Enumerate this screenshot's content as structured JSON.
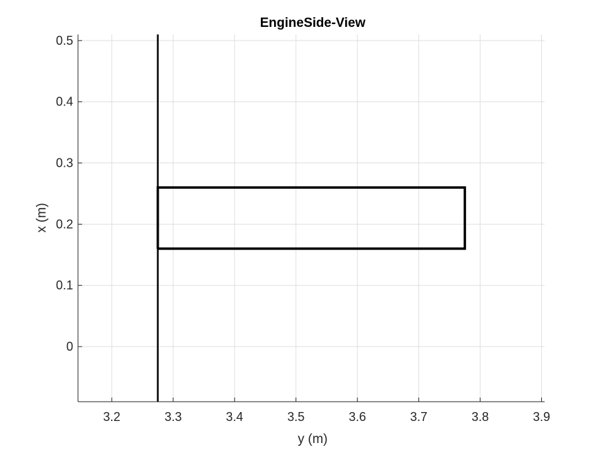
{
  "chart_data": {
    "type": "line",
    "title": "EngineSide-View",
    "xlabel": "y (m)",
    "ylabel": "x (m)",
    "xlim": [
      3.145,
      3.905
    ],
    "ylim": [
      -0.09,
      0.51
    ],
    "xticks": [
      3.2,
      3.3,
      3.4,
      3.5,
      3.6,
      3.7,
      3.8,
      3.9
    ],
    "yticks": [
      0,
      0.1,
      0.2,
      0.3,
      0.4,
      0.5
    ],
    "xtick_labels": [
      "3.2",
      "3.3",
      "3.4",
      "3.5",
      "3.6",
      "3.7",
      "3.8",
      "3.9"
    ],
    "ytick_labels": [
      "0",
      "0.1",
      "0.2",
      "0.3",
      "0.4",
      "0.5"
    ],
    "grid": true,
    "series": [
      {
        "kind": "vertical-line",
        "color": "#000000",
        "x": [
          3.275,
          3.275
        ],
        "y": [
          -0.09,
          0.51
        ]
      },
      {
        "kind": "rectangle-outline",
        "color": "#000000",
        "x": [
          3.275,
          3.775,
          3.775,
          3.275,
          3.275
        ],
        "y": [
          0.16,
          0.16,
          0.26,
          0.26,
          0.16
        ]
      }
    ]
  }
}
